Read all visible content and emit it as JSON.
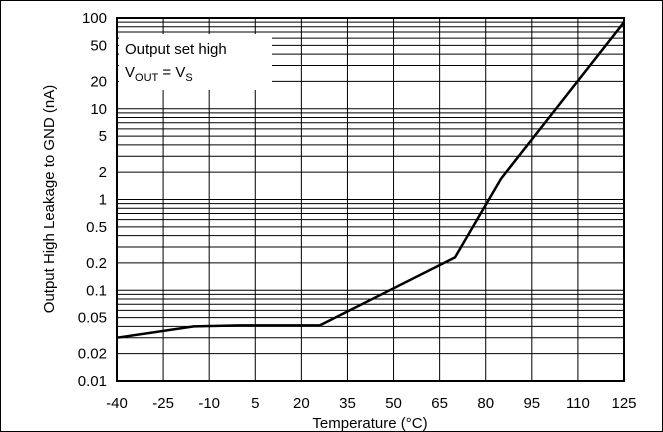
{
  "chart_data": {
    "type": "line",
    "xlabel": "Temperature (°C)",
    "ylabel": "Output High Leakage to GND (nA)",
    "xlim": [
      -40,
      125
    ],
    "ylim": [
      0.01,
      100
    ],
    "yscale": "log",
    "grid": true,
    "x_ticks": [
      "-40",
      "-25",
      "-10",
      "5",
      "20",
      "35",
      "50",
      "65",
      "80",
      "95",
      "110",
      "125"
    ],
    "y_ticks": [
      {
        "label": "100",
        "value": 100
      },
      {
        "label": "50",
        "value": 50
      },
      {
        "label": "20",
        "value": 20
      },
      {
        "label": "10",
        "value": 10
      },
      {
        "label": "5",
        "value": 5
      },
      {
        "label": "2",
        "value": 2
      },
      {
        "label": "1",
        "value": 1
      },
      {
        "label": "0.5",
        "value": 0.5
      },
      {
        "label": "0.2",
        "value": 0.2
      },
      {
        "label": "0.1",
        "value": 0.1
      },
      {
        "label": "0.05",
        "value": 0.05
      },
      {
        "label": "0.02",
        "value": 0.02
      },
      {
        "label": "0.01",
        "value": 0.01
      }
    ],
    "annotation": {
      "line1": "Output set high",
      "line2_main": "V",
      "line2_sub": "OUT",
      "line2_eq": " = V",
      "line2_sub2": "S"
    },
    "series": [
      {
        "x": [
          -40,
          -15,
          0,
          26,
          70,
          85,
          125
        ],
        "y": [
          0.03,
          0.04,
          0.041,
          0.041,
          0.23,
          1.7,
          90
        ]
      }
    ]
  }
}
